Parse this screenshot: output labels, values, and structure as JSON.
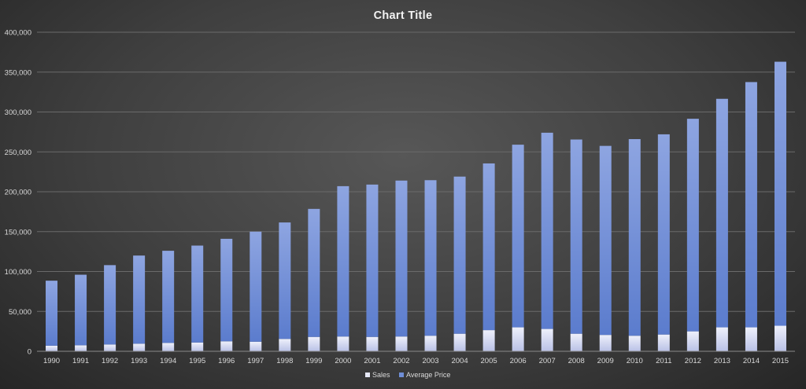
{
  "chart_data": {
    "type": "bar",
    "stacked": true,
    "title": "Chart Title",
    "xlabel": "",
    "ylabel": "",
    "ylim": [
      0,
      400000
    ],
    "yticks": [
      0,
      50000,
      100000,
      150000,
      200000,
      250000,
      300000,
      350000,
      400000
    ],
    "ytick_labels": [
      "0",
      "50,000",
      "100,000",
      "150,000",
      "200,000",
      "250,000",
      "300,000",
      "350,000",
      "400,000"
    ],
    "grid": true,
    "legend_position": "bottom",
    "categories": [
      "1990",
      "1991",
      "1992",
      "1993",
      "1994",
      "1995",
      "1996",
      "1997",
      "1998",
      "1999",
      "2000",
      "2001",
      "2002",
      "2003",
      "2004",
      "2005",
      "2006",
      "2007",
      "2008",
      "2009",
      "2010",
      "2011",
      "2012",
      "2013",
      "2014",
      "2015"
    ],
    "series": [
      {
        "name": "Sales",
        "color": "#e6e8f7",
        "values": [
          7000,
          7500,
          8500,
          9500,
          10500,
          11000,
          12500,
          12000,
          15500,
          18000,
          18500,
          18000,
          18500,
          19500,
          22000,
          26500,
          30000,
          28000,
          22000,
          20500,
          19500,
          21000,
          25000,
          30000,
          30000,
          32000
        ]
      },
      {
        "name": "Average Price",
        "color": "#6f8ed6",
        "values": [
          81500,
          88500,
          99500,
          110500,
          115500,
          121500,
          128500,
          138000,
          146000,
          160500,
          188500,
          191000,
          195500,
          195000,
          197000,
          209000,
          229000,
          246000,
          243500,
          237000,
          246500,
          251000,
          266500,
          286500,
          307500,
          331000
        ]
      }
    ]
  }
}
